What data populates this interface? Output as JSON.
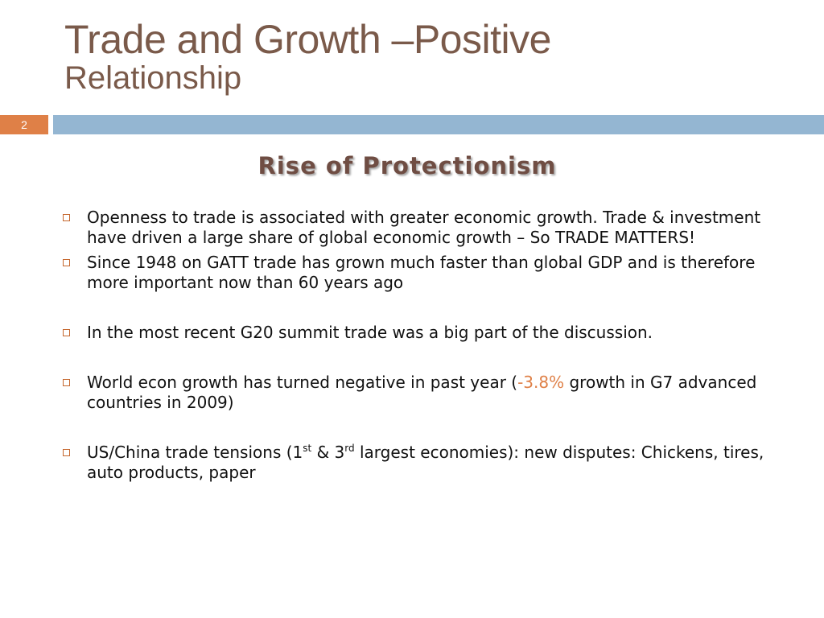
{
  "title": {
    "line1": "Trade and Growth –Positive",
    "line2": "Relationship"
  },
  "slide_number": "2",
  "subtitle": "Rise of Protectionism",
  "bullets": [
    {
      "text": "Openness to trade is associated with greater economic growth. Trade & investment have driven a large share of global economic growth – So TRADE MATTERS!"
    },
    {
      "text": "Since 1948 on GATT trade has grown much faster than global GDP and is therefore more important now than 60 years ago"
    },
    {
      "text": "In the most recent G20 summit trade was a big part of the discussion."
    },
    {
      "part1": "World econ growth has turned negative in past year (",
      "highlight": "-3.8%",
      "part2": " growth in G7 advanced countries in 2009)"
    },
    {
      "part1": "US/China trade tensions (1",
      "sup1": "st",
      "part2": " & 3",
      "sup2": "rd",
      "part3": " largest economies):  new disputes: Chickens, tires, auto products, paper"
    }
  ],
  "colors": {
    "title": "#7a5a4a",
    "subtitle": "#6f4d43",
    "accent_orange": "#df8047",
    "accent_blue": "#94b6d2"
  }
}
